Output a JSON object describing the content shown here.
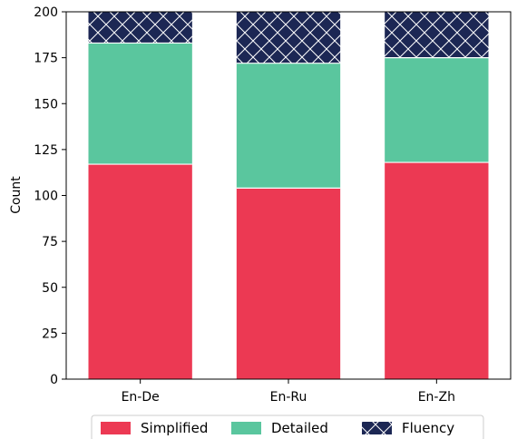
{
  "chart_data": {
    "type": "bar",
    "stacked": true,
    "categories": [
      "En-De",
      "En-Ru",
      "En-Zh"
    ],
    "series": [
      {
        "name": "Simplified",
        "values": [
          117,
          104,
          118
        ],
        "color": "#ec3953",
        "hatch": "none"
      },
      {
        "name": "Detailed",
        "values": [
          66,
          68,
          57
        ],
        "color": "#5ac69e",
        "hatch": "none"
      },
      {
        "name": "Fluency",
        "values": [
          17,
          28,
          25
        ],
        "color": "#1c2754",
        "hatch": "cross"
      }
    ],
    "ylabel": "Count",
    "xlabel": "",
    "ylim": [
      0,
      200
    ],
    "yticks": [
      0,
      25,
      50,
      75,
      100,
      125,
      150,
      175,
      200
    ],
    "grid": false,
    "legend_position": "bottom-center"
  }
}
